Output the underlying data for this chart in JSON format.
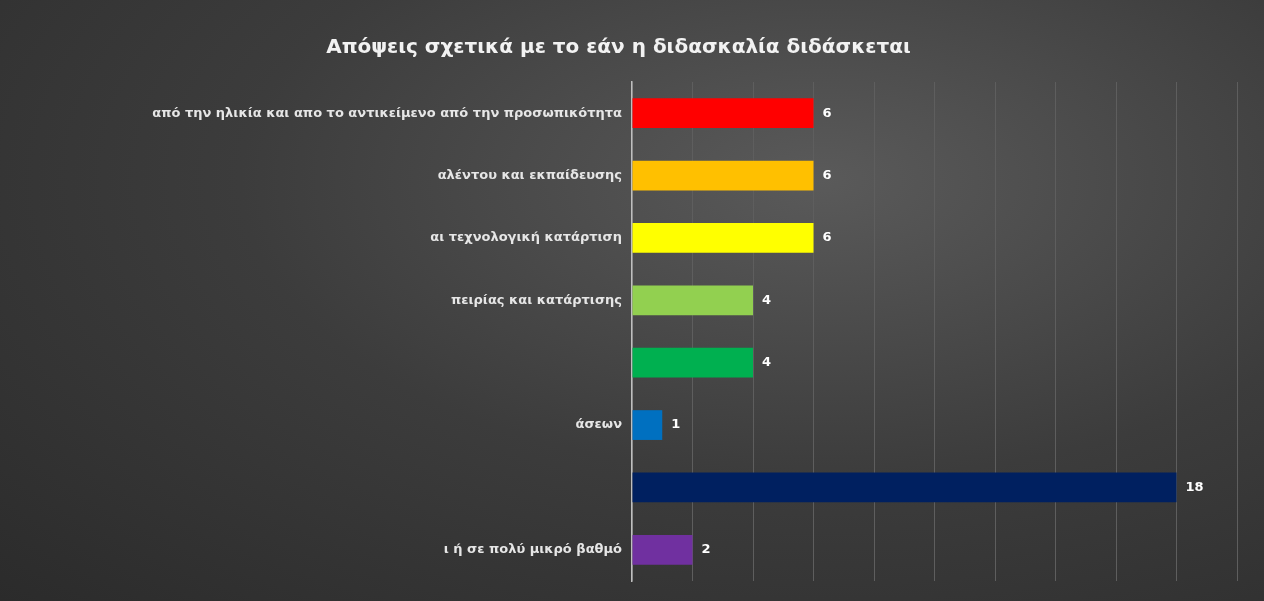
{
  "chart_data": {
    "type": "bar",
    "orientation": "horizontal",
    "title": "Απόψεις σχετικά με το εάν η διδασκαλία διδάσκεται",
    "categories": [
      "από την ηλικία και απο το αντικείμενο από την προσωπικότητα",
      "αλέντου και εκπαίδευσης",
      "αι τεχνολογική κατάρτιση",
      "πειρίας και κατάρτισης",
      null,
      "άσεων",
      null,
      "ι ή σε πολύ μικρό βαθμό"
    ],
    "values": [
      6,
      6,
      6,
      4,
      4,
      1,
      18,
      2
    ],
    "colors": [
      "#ff0000",
      "#ffc000",
      "#ffff00",
      "#92d050",
      "#00b050",
      "#0070c0",
      "#002060",
      "#7030a0"
    ],
    "xlim": [
      0,
      20
    ],
    "xticks": [
      {
        "value": 0,
        "label": null
      },
      {
        "value": 2,
        "label": null
      },
      {
        "value": 4,
        "label": null
      },
      {
        "value": 6,
        "label": null
      },
      {
        "value": 8,
        "label": null
      },
      {
        "value": 10,
        "label": null
      },
      {
        "value": 12,
        "label": null
      },
      {
        "value": 14,
        "label": null
      },
      {
        "value": 16,
        "label": null
      },
      {
        "value": 18,
        "label": null
      },
      {
        "value": 20,
        "label": null
      }
    ],
    "grid": "x",
    "tick_labels": "y",
    "data_labels": true,
    "legend": false
  }
}
